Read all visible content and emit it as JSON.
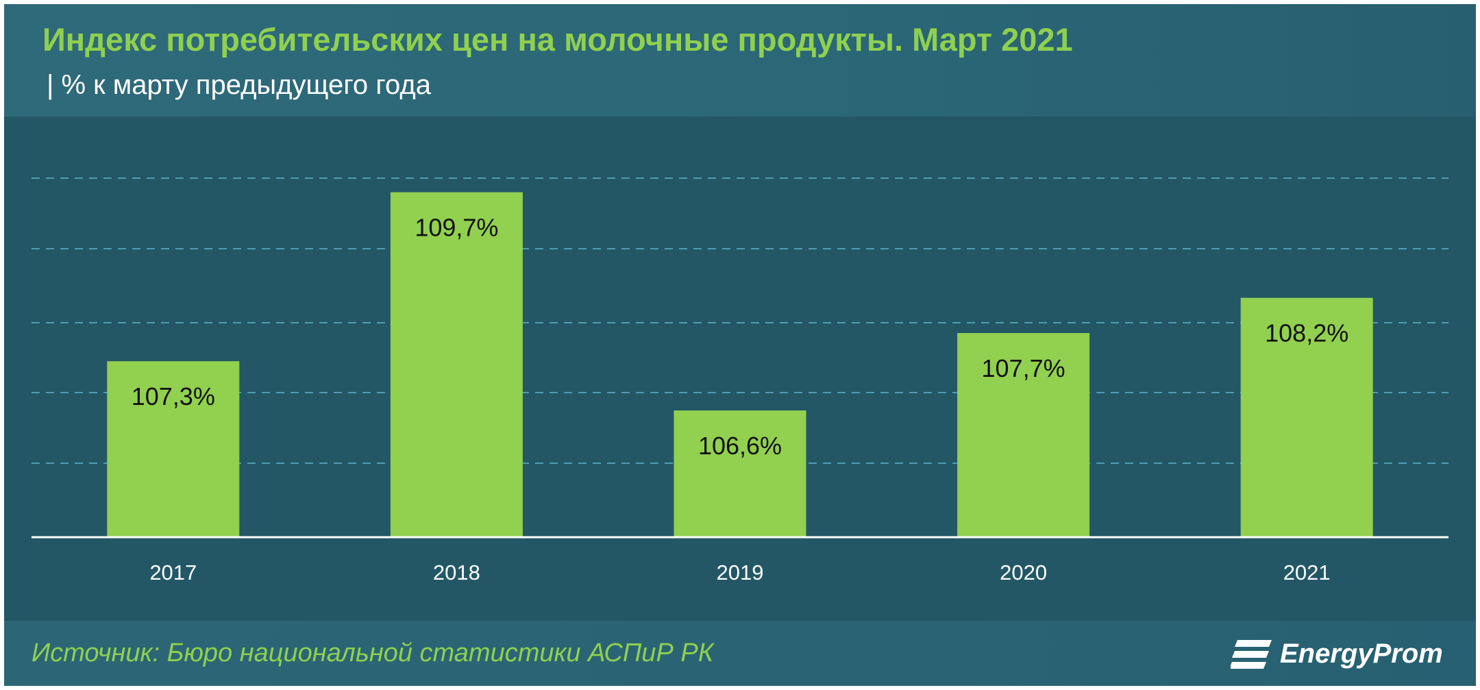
{
  "header": {
    "title": "Индекс потребительских цен на молочные продукты. Март 2021",
    "subtitle": "| % к марту предыдущего года"
  },
  "footer": {
    "source": "Источник: Бюро национальной  статистики АСПиР РК",
    "logo_text": "EnergyProm"
  },
  "colors": {
    "background": "#235766",
    "bar": "#92d050",
    "title": "#8fd04f",
    "gridline": "#4f9cb3"
  },
  "chart_data": {
    "type": "bar",
    "categories": [
      "2017",
      "2018",
      "2019",
      "2020",
      "2021"
    ],
    "values": [
      107.3,
      109.7,
      106.6,
      107.7,
      108.2
    ],
    "value_labels": [
      "107,3%",
      "109,7%",
      "106,6%",
      "107,7%",
      "108,2%"
    ],
    "title": "Индекс потребительских цен на молочные продукты. Март 2021",
    "subtitle": "| % к марту предыдущего года",
    "ylim": [
      104.8,
      109.9
    ],
    "grid": true,
    "legend": "none"
  }
}
